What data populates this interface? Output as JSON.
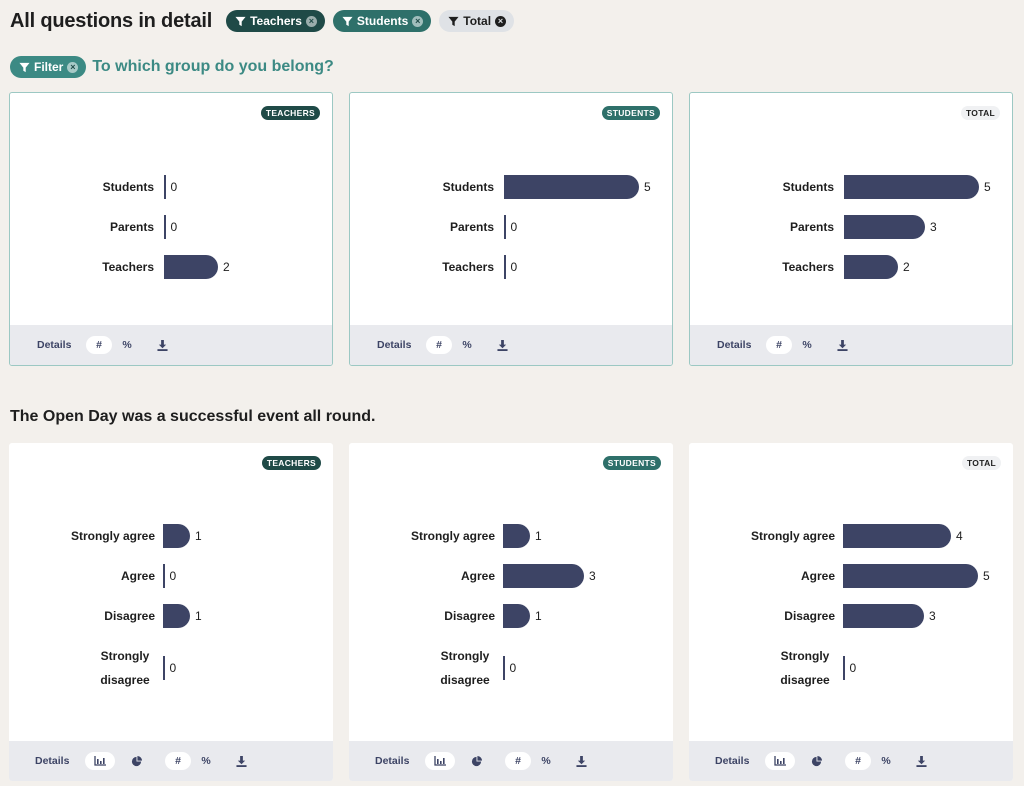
{
  "header": {
    "title": "All questions in detail",
    "tags": [
      {
        "label": "Teachers"
      },
      {
        "label": "Students"
      },
      {
        "label": "Total"
      }
    ]
  },
  "question1": {
    "filter_label": "Filter",
    "title": "To which group do you belong?",
    "cards": [
      {
        "badge": "TEACHERS",
        "rows": [
          {
            "label": "Students",
            "value": 0
          },
          {
            "label": "Parents",
            "value": 0
          },
          {
            "label": "Teachers",
            "value": 2
          }
        ]
      },
      {
        "badge": "STUDENTS",
        "rows": [
          {
            "label": "Students",
            "value": 5
          },
          {
            "label": "Parents",
            "value": 0
          },
          {
            "label": "Teachers",
            "value": 0
          }
        ]
      },
      {
        "badge": "TOTAL",
        "rows": [
          {
            "label": "Students",
            "value": 5
          },
          {
            "label": "Parents",
            "value": 3
          },
          {
            "label": "Teachers",
            "value": 2
          }
        ]
      }
    ]
  },
  "question2": {
    "title": "The Open Day was a successful event all round.",
    "cards": [
      {
        "badge": "TEACHERS",
        "rows": [
          {
            "label": "Strongly agree",
            "value": 1
          },
          {
            "label": "Agree",
            "value": 0
          },
          {
            "label": "Disagree",
            "value": 1
          },
          {
            "label": "Strongly disagree",
            "value": 0
          }
        ]
      },
      {
        "badge": "STUDENTS",
        "rows": [
          {
            "label": "Strongly agree",
            "value": 1
          },
          {
            "label": "Agree",
            "value": 3
          },
          {
            "label": "Disagree",
            "value": 1
          },
          {
            "label": "Strongly disagree",
            "value": 0
          }
        ]
      },
      {
        "badge": "TOTAL",
        "rows": [
          {
            "label": "Strongly agree",
            "value": 4
          },
          {
            "label": "Agree",
            "value": 5
          },
          {
            "label": "Disagree",
            "value": 3
          },
          {
            "label": "Strongly disagree",
            "value": 0
          }
        ]
      }
    ]
  },
  "footer": {
    "details_label": "Details",
    "count_label": "#",
    "percent_label": "%"
  },
  "colors": {
    "background": "#f3f0ec",
    "bar": "#3d4465",
    "teachers": "#1f4a47",
    "students": "#2e706a",
    "filter": "#3c8a84"
  }
}
